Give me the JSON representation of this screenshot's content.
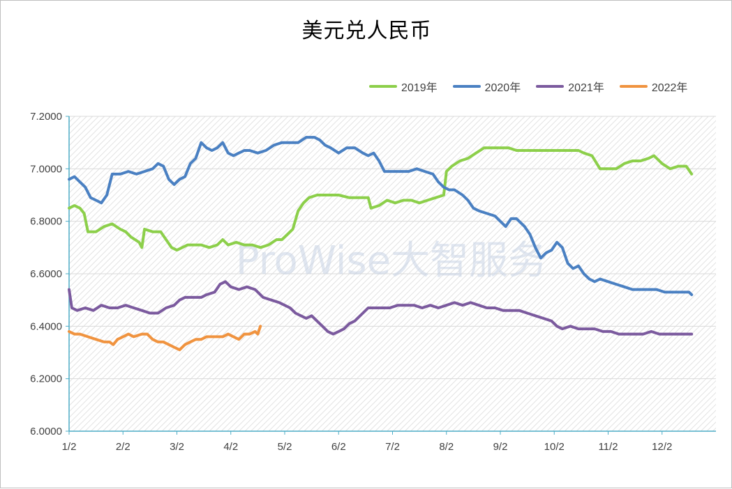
{
  "chart_data": {
    "type": "line",
    "title": "美元兑人民币",
    "watermark": "ProWise大智服务",
    "ylim": [
      6.0,
      7.2
    ],
    "yticks": [
      "6.0000",
      "6.2000",
      "6.4000",
      "6.6000",
      "6.8000",
      "7.0000",
      "7.2000"
    ],
    "xticks": [
      "1/2",
      "2/2",
      "3/2",
      "4/2",
      "5/2",
      "6/2",
      "7/2",
      "8/2",
      "9/2",
      "10/2",
      "11/2",
      "12/2"
    ],
    "xlim": [
      0,
      12
    ],
    "grid": true,
    "legend_position": "top-right",
    "series": [
      {
        "name": "2019年",
        "color": "#8ccf4a",
        "points": [
          [
            0.0,
            6.85
          ],
          [
            0.1,
            6.86
          ],
          [
            0.2,
            6.85
          ],
          [
            0.28,
            6.83
          ],
          [
            0.35,
            6.76
          ],
          [
            0.5,
            6.76
          ],
          [
            0.65,
            6.78
          ],
          [
            0.8,
            6.79
          ],
          [
            0.95,
            6.77
          ],
          [
            1.05,
            6.76
          ],
          [
            1.15,
            6.74
          ],
          [
            1.3,
            6.72
          ],
          [
            1.35,
            6.7
          ],
          [
            1.4,
            6.77
          ],
          [
            1.55,
            6.76
          ],
          [
            1.7,
            6.76
          ],
          [
            1.8,
            6.73
          ],
          [
            1.9,
            6.7
          ],
          [
            2.0,
            6.69
          ],
          [
            2.1,
            6.7
          ],
          [
            2.2,
            6.71
          ],
          [
            2.3,
            6.71
          ],
          [
            2.45,
            6.71
          ],
          [
            2.6,
            6.7
          ],
          [
            2.75,
            6.71
          ],
          [
            2.85,
            6.73
          ],
          [
            2.95,
            6.71
          ],
          [
            3.1,
            6.72
          ],
          [
            3.25,
            6.71
          ],
          [
            3.4,
            6.71
          ],
          [
            3.55,
            6.7
          ],
          [
            3.7,
            6.71
          ],
          [
            3.85,
            6.73
          ],
          [
            3.95,
            6.73
          ],
          [
            4.05,
            6.75
          ],
          [
            4.15,
            6.77
          ],
          [
            4.25,
            6.84
          ],
          [
            4.35,
            6.87
          ],
          [
            4.45,
            6.89
          ],
          [
            4.6,
            6.9
          ],
          [
            4.8,
            6.9
          ],
          [
            5.0,
            6.9
          ],
          [
            5.2,
            6.89
          ],
          [
            5.4,
            6.89
          ],
          [
            5.55,
            6.89
          ],
          [
            5.6,
            6.85
          ],
          [
            5.75,
            6.86
          ],
          [
            5.9,
            6.88
          ],
          [
            6.05,
            6.87
          ],
          [
            6.2,
            6.88
          ],
          [
            6.35,
            6.88
          ],
          [
            6.5,
            6.87
          ],
          [
            6.65,
            6.88
          ],
          [
            6.8,
            6.89
          ],
          [
            6.95,
            6.9
          ],
          [
            7.0,
            6.99
          ],
          [
            7.1,
            7.01
          ],
          [
            7.25,
            7.03
          ],
          [
            7.4,
            7.04
          ],
          [
            7.55,
            7.06
          ],
          [
            7.7,
            7.08
          ],
          [
            7.85,
            7.08
          ],
          [
            8.0,
            7.08
          ],
          [
            8.15,
            7.08
          ],
          [
            8.3,
            7.07
          ],
          [
            8.5,
            7.07
          ],
          [
            8.7,
            7.07
          ],
          [
            8.9,
            7.07
          ],
          [
            9.1,
            7.07
          ],
          [
            9.3,
            7.07
          ],
          [
            9.45,
            7.07
          ],
          [
            9.55,
            7.06
          ],
          [
            9.7,
            7.05
          ],
          [
            9.85,
            7.0
          ],
          [
            10.0,
            7.0
          ],
          [
            10.15,
            7.0
          ],
          [
            10.3,
            7.02
          ],
          [
            10.45,
            7.03
          ],
          [
            10.6,
            7.03
          ],
          [
            10.75,
            7.04
          ],
          [
            10.85,
            7.05
          ],
          [
            11.0,
            7.02
          ],
          [
            11.15,
            7.0
          ],
          [
            11.3,
            7.01
          ],
          [
            11.45,
            7.01
          ],
          [
            11.55,
            6.98
          ]
        ]
      },
      {
        "name": "2020年",
        "color": "#4a80c2",
        "points": [
          [
            0.0,
            6.96
          ],
          [
            0.1,
            6.97
          ],
          [
            0.2,
            6.95
          ],
          [
            0.3,
            6.93
          ],
          [
            0.4,
            6.89
          ],
          [
            0.5,
            6.88
          ],
          [
            0.6,
            6.87
          ],
          [
            0.7,
            6.9
          ],
          [
            0.8,
            6.98
          ],
          [
            0.95,
            6.98
          ],
          [
            1.1,
            6.99
          ],
          [
            1.25,
            6.98
          ],
          [
            1.4,
            6.99
          ],
          [
            1.55,
            7.0
          ],
          [
            1.65,
            7.02
          ],
          [
            1.75,
            7.01
          ],
          [
            1.85,
            6.96
          ],
          [
            1.95,
            6.94
          ],
          [
            2.05,
            6.96
          ],
          [
            2.15,
            6.97
          ],
          [
            2.25,
            7.02
          ],
          [
            2.35,
            7.04
          ],
          [
            2.45,
            7.1
          ],
          [
            2.55,
            7.08
          ],
          [
            2.65,
            7.07
          ],
          [
            2.75,
            7.08
          ],
          [
            2.85,
            7.1
          ],
          [
            2.95,
            7.06
          ],
          [
            3.05,
            7.05
          ],
          [
            3.15,
            7.06
          ],
          [
            3.25,
            7.07
          ],
          [
            3.35,
            7.07
          ],
          [
            3.5,
            7.06
          ],
          [
            3.65,
            7.07
          ],
          [
            3.8,
            7.09
          ],
          [
            3.95,
            7.1
          ],
          [
            4.1,
            7.1
          ],
          [
            4.25,
            7.1
          ],
          [
            4.4,
            7.12
          ],
          [
            4.55,
            7.12
          ],
          [
            4.65,
            7.11
          ],
          [
            4.75,
            7.09
          ],
          [
            4.85,
            7.08
          ],
          [
            5.0,
            7.06
          ],
          [
            5.15,
            7.08
          ],
          [
            5.3,
            7.08
          ],
          [
            5.45,
            7.06
          ],
          [
            5.55,
            7.05
          ],
          [
            5.65,
            7.06
          ],
          [
            5.75,
            7.03
          ],
          [
            5.85,
            6.99
          ],
          [
            6.0,
            6.99
          ],
          [
            6.15,
            6.99
          ],
          [
            6.3,
            6.99
          ],
          [
            6.45,
            7.0
          ],
          [
            6.6,
            6.99
          ],
          [
            6.75,
            6.98
          ],
          [
            6.85,
            6.95
          ],
          [
            6.95,
            6.93
          ],
          [
            7.05,
            6.92
          ],
          [
            7.15,
            6.92
          ],
          [
            7.3,
            6.9
          ],
          [
            7.4,
            6.88
          ],
          [
            7.5,
            6.85
          ],
          [
            7.6,
            6.84
          ],
          [
            7.75,
            6.83
          ],
          [
            7.9,
            6.82
          ],
          [
            8.0,
            6.8
          ],
          [
            8.1,
            6.78
          ],
          [
            8.2,
            6.81
          ],
          [
            8.3,
            6.81
          ],
          [
            8.45,
            6.78
          ],
          [
            8.55,
            6.75
          ],
          [
            8.65,
            6.7
          ],
          [
            8.75,
            6.66
          ],
          [
            8.85,
            6.68
          ],
          [
            8.95,
            6.69
          ],
          [
            9.05,
            6.72
          ],
          [
            9.15,
            6.7
          ],
          [
            9.25,
            6.64
          ],
          [
            9.35,
            6.62
          ],
          [
            9.45,
            6.63
          ],
          [
            9.55,
            6.6
          ],
          [
            9.65,
            6.58
          ],
          [
            9.75,
            6.57
          ],
          [
            9.85,
            6.58
          ],
          [
            10.0,
            6.57
          ],
          [
            10.15,
            6.56
          ],
          [
            10.3,
            6.55
          ],
          [
            10.45,
            6.54
          ],
          [
            10.6,
            6.54
          ],
          [
            10.75,
            6.54
          ],
          [
            10.9,
            6.54
          ],
          [
            11.05,
            6.53
          ],
          [
            11.2,
            6.53
          ],
          [
            11.35,
            6.53
          ],
          [
            11.5,
            6.53
          ],
          [
            11.55,
            6.52
          ]
        ]
      },
      {
        "name": "2021年",
        "color": "#7b5a9e",
        "points": [
          [
            0.0,
            6.54
          ],
          [
            0.05,
            6.47
          ],
          [
            0.15,
            6.46
          ],
          [
            0.3,
            6.47
          ],
          [
            0.45,
            6.46
          ],
          [
            0.6,
            6.48
          ],
          [
            0.75,
            6.47
          ],
          [
            0.9,
            6.47
          ],
          [
            1.05,
            6.48
          ],
          [
            1.2,
            6.47
          ],
          [
            1.35,
            6.46
          ],
          [
            1.5,
            6.45
          ],
          [
            1.65,
            6.45
          ],
          [
            1.8,
            6.47
          ],
          [
            1.95,
            6.48
          ],
          [
            2.05,
            6.5
          ],
          [
            2.15,
            6.51
          ],
          [
            2.3,
            6.51
          ],
          [
            2.45,
            6.51
          ],
          [
            2.55,
            6.52
          ],
          [
            2.7,
            6.53
          ],
          [
            2.8,
            6.56
          ],
          [
            2.9,
            6.57
          ],
          [
            3.0,
            6.55
          ],
          [
            3.15,
            6.54
          ],
          [
            3.3,
            6.55
          ],
          [
            3.45,
            6.54
          ],
          [
            3.6,
            6.51
          ],
          [
            3.75,
            6.5
          ],
          [
            3.9,
            6.49
          ],
          [
            4.0,
            6.48
          ],
          [
            4.1,
            6.47
          ],
          [
            4.2,
            6.45
          ],
          [
            4.3,
            6.44
          ],
          [
            4.4,
            6.43
          ],
          [
            4.5,
            6.44
          ],
          [
            4.6,
            6.42
          ],
          [
            4.7,
            6.4
          ],
          [
            4.8,
            6.38
          ],
          [
            4.9,
            6.37
          ],
          [
            5.0,
            6.38
          ],
          [
            5.1,
            6.39
          ],
          [
            5.2,
            6.41
          ],
          [
            5.3,
            6.42
          ],
          [
            5.45,
            6.45
          ],
          [
            5.55,
            6.47
          ],
          [
            5.65,
            6.47
          ],
          [
            5.8,
            6.47
          ],
          [
            5.95,
            6.47
          ],
          [
            6.1,
            6.48
          ],
          [
            6.25,
            6.48
          ],
          [
            6.4,
            6.48
          ],
          [
            6.55,
            6.47
          ],
          [
            6.7,
            6.48
          ],
          [
            6.85,
            6.47
          ],
          [
            7.0,
            6.48
          ],
          [
            7.15,
            6.49
          ],
          [
            7.3,
            6.48
          ],
          [
            7.45,
            6.49
          ],
          [
            7.6,
            6.48
          ],
          [
            7.75,
            6.47
          ],
          [
            7.9,
            6.47
          ],
          [
            8.05,
            6.46
          ],
          [
            8.2,
            6.46
          ],
          [
            8.35,
            6.46
          ],
          [
            8.5,
            6.45
          ],
          [
            8.65,
            6.44
          ],
          [
            8.8,
            6.43
          ],
          [
            8.95,
            6.42
          ],
          [
            9.05,
            6.4
          ],
          [
            9.15,
            6.39
          ],
          [
            9.3,
            6.4
          ],
          [
            9.45,
            6.39
          ],
          [
            9.6,
            6.39
          ],
          [
            9.75,
            6.39
          ],
          [
            9.9,
            6.38
          ],
          [
            10.05,
            6.38
          ],
          [
            10.2,
            6.37
          ],
          [
            10.35,
            6.37
          ],
          [
            10.5,
            6.37
          ],
          [
            10.65,
            6.37
          ],
          [
            10.8,
            6.38
          ],
          [
            10.95,
            6.37
          ],
          [
            11.1,
            6.37
          ],
          [
            11.25,
            6.37
          ],
          [
            11.4,
            6.37
          ],
          [
            11.55,
            6.37
          ]
        ]
      },
      {
        "name": "2022年",
        "color": "#f0933f",
        "points": [
          [
            0.0,
            6.38
          ],
          [
            0.1,
            6.37
          ],
          [
            0.2,
            6.37
          ],
          [
            0.35,
            6.36
          ],
          [
            0.5,
            6.35
          ],
          [
            0.65,
            6.34
          ],
          [
            0.75,
            6.34
          ],
          [
            0.82,
            6.33
          ],
          [
            0.9,
            6.35
          ],
          [
            1.0,
            6.36
          ],
          [
            1.1,
            6.37
          ],
          [
            1.2,
            6.36
          ],
          [
            1.35,
            6.37
          ],
          [
            1.45,
            6.37
          ],
          [
            1.55,
            6.35
          ],
          [
            1.65,
            6.34
          ],
          [
            1.75,
            6.34
          ],
          [
            1.85,
            6.33
          ],
          [
            1.95,
            6.32
          ],
          [
            2.05,
            6.31
          ],
          [
            2.15,
            6.33
          ],
          [
            2.25,
            6.34
          ],
          [
            2.35,
            6.35
          ],
          [
            2.45,
            6.35
          ],
          [
            2.55,
            6.36
          ],
          [
            2.65,
            6.36
          ],
          [
            2.75,
            6.36
          ],
          [
            2.85,
            6.36
          ],
          [
            2.95,
            6.37
          ],
          [
            3.05,
            6.36
          ],
          [
            3.15,
            6.35
          ],
          [
            3.25,
            6.37
          ],
          [
            3.35,
            6.37
          ],
          [
            3.45,
            6.38
          ],
          [
            3.5,
            6.37
          ],
          [
            3.55,
            6.4
          ]
        ]
      }
    ]
  }
}
